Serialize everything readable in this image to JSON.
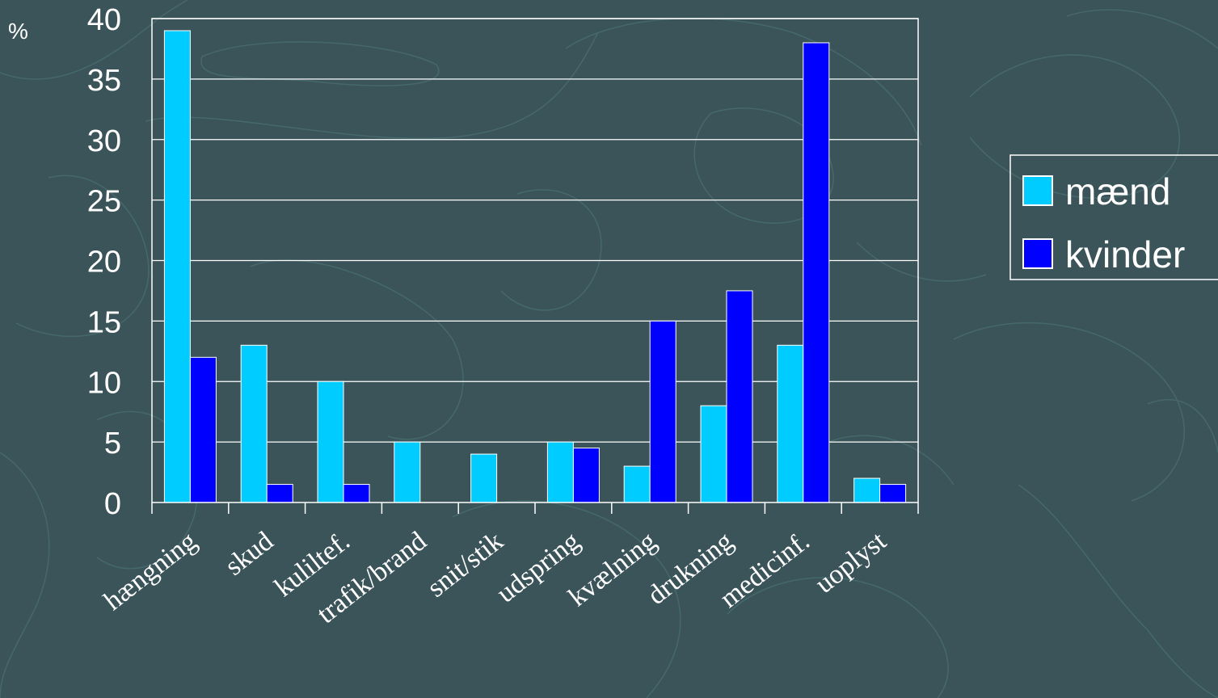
{
  "chart_data": {
    "type": "bar",
    "unit_label": "%",
    "categories": [
      "hængning",
      "skud",
      "kuliltef.",
      "trafik/brand",
      "snit/stik",
      "udspring",
      "kvælning",
      "drukning",
      "medicinf.",
      "uoplyst"
    ],
    "series": [
      {
        "name": "mænd",
        "color": "#00ccff",
        "values": [
          39,
          13,
          10,
          5,
          4,
          5,
          3,
          8,
          13,
          2
        ]
      },
      {
        "name": "kvinder",
        "color": "#0000ff",
        "values": [
          12,
          1.5,
          1.5,
          0,
          0,
          4.5,
          15,
          17.5,
          38,
          1.5
        ]
      }
    ],
    "ylim": [
      0,
      40
    ],
    "yticks": [
      "0",
      "5",
      "10",
      "15",
      "20",
      "25",
      "30",
      "35",
      "40"
    ],
    "grid": true,
    "legend_position": "right"
  },
  "colors": {
    "background": "#3b5459",
    "text": "#ffffff",
    "gridline": "#ffffff"
  }
}
